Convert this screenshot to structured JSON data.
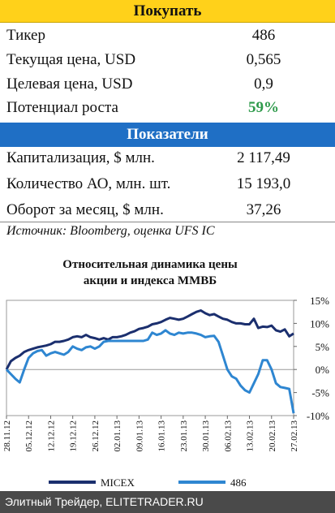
{
  "header": {
    "title": "Покупать"
  },
  "table": {
    "rows": [
      [
        "Тикер",
        "486"
      ],
      [
        "Текущая цена, USD",
        "0,565"
      ],
      [
        "Целевая цена, USD",
        "0,9"
      ],
      [
        "Потенциал роста",
        "59%"
      ]
    ]
  },
  "section": {
    "title": "Показатели"
  },
  "indicators": {
    "rows": [
      [
        "Капитализация, $ млн.",
        "2 117,49"
      ],
      [
        "Количество АО, млн. шт.",
        "15 193,0"
      ],
      [
        "Оборот за месяц, $ млн.",
        "37,26"
      ]
    ]
  },
  "source": "Источник: Bloomberg, оценка UFS IC",
  "chart_data": {
    "type": "line",
    "title": [
      "Относительная динамика цены",
      "акции и индекса ММВБ"
    ],
    "categories": [
      "28.11.12",
      null,
      null,
      null,
      null,
      "05.12.12",
      null,
      null,
      null,
      null,
      "12.12.12",
      null,
      null,
      null,
      null,
      "19.12.12",
      null,
      null,
      null,
      null,
      "26.12.12",
      null,
      null,
      null,
      null,
      "02.01.13",
      null,
      null,
      null,
      null,
      "09.01.13",
      null,
      null,
      null,
      null,
      "16.01.13",
      null,
      null,
      null,
      null,
      "23.01.13",
      null,
      null,
      null,
      null,
      "30.01.13",
      null,
      null,
      null,
      null,
      "06.02.13",
      null,
      null,
      null,
      null,
      "13.02.13",
      null,
      null,
      null,
      null,
      "20.02.13",
      null,
      null,
      null,
      null,
      "27.02.13"
    ],
    "series": [
      {
        "name": "MICEX",
        "color": "#1b2f6e",
        "values": [
          0,
          1.8,
          2.5,
          3,
          3.8,
          4.2,
          4.5,
          4.8,
          5,
          5.2,
          5.5,
          6,
          6,
          6.2,
          6.5,
          7,
          7.2,
          7,
          7.5,
          7,
          6.8,
          6.5,
          6.8,
          6.5,
          7,
          7,
          7.2,
          7.5,
          8,
          8.3,
          8.8,
          9,
          9.3,
          9.8,
          10,
          10.3,
          10.8,
          11.2,
          11,
          10.8,
          11,
          11.5,
          12,
          12.5,
          12.8,
          12.2,
          11.8,
          12,
          11.5,
          11,
          10.8,
          10.3,
          10,
          10,
          9.8,
          9.8,
          11,
          9,
          9.3,
          9.2,
          9.5,
          8.5,
          8.2,
          8.7,
          7.2,
          7.8
        ]
      },
      {
        "name": "486",
        "color": "#2e86d1",
        "values": [
          0,
          -1,
          -2,
          -2.8,
          0,
          2.5,
          3.5,
          4,
          4.2,
          3,
          3.5,
          3.8,
          3.5,
          3.2,
          3.8,
          5,
          4.5,
          4.2,
          4.8,
          5,
          4.5,
          5,
          6,
          6.2,
          6.2,
          6.2,
          6.2,
          6.2,
          6.2,
          6.2,
          6.2,
          6.2,
          6.5,
          8,
          7.5,
          7.8,
          8.5,
          7.8,
          7.5,
          8,
          7.8,
          8,
          8,
          7.8,
          7.5,
          7,
          7.2,
          7.3,
          6,
          3,
          0,
          -1.5,
          -2,
          -3.5,
          -4.5,
          -5,
          -3,
          -1,
          2,
          2,
          0,
          -3,
          -3.8,
          -4,
          -4.2,
          -9.5
        ]
      }
    ],
    "ylim": [
      -10,
      15
    ],
    "yticks": [
      {
        "value": 15,
        "label": "15%"
      },
      {
        "value": 10,
        "label": "10%"
      },
      {
        "value": 5,
        "label": "5%"
      },
      {
        "value": 0,
        "label": "0%"
      },
      {
        "value": -5,
        "label": "-5%"
      },
      {
        "value": -10,
        "label": "-10%"
      }
    ],
    "y_axis_side": "right",
    "grid": false,
    "legend": "bottom"
  },
  "footer": {
    "text": "Элитный Трейдер, ELITETRADER.RU"
  }
}
